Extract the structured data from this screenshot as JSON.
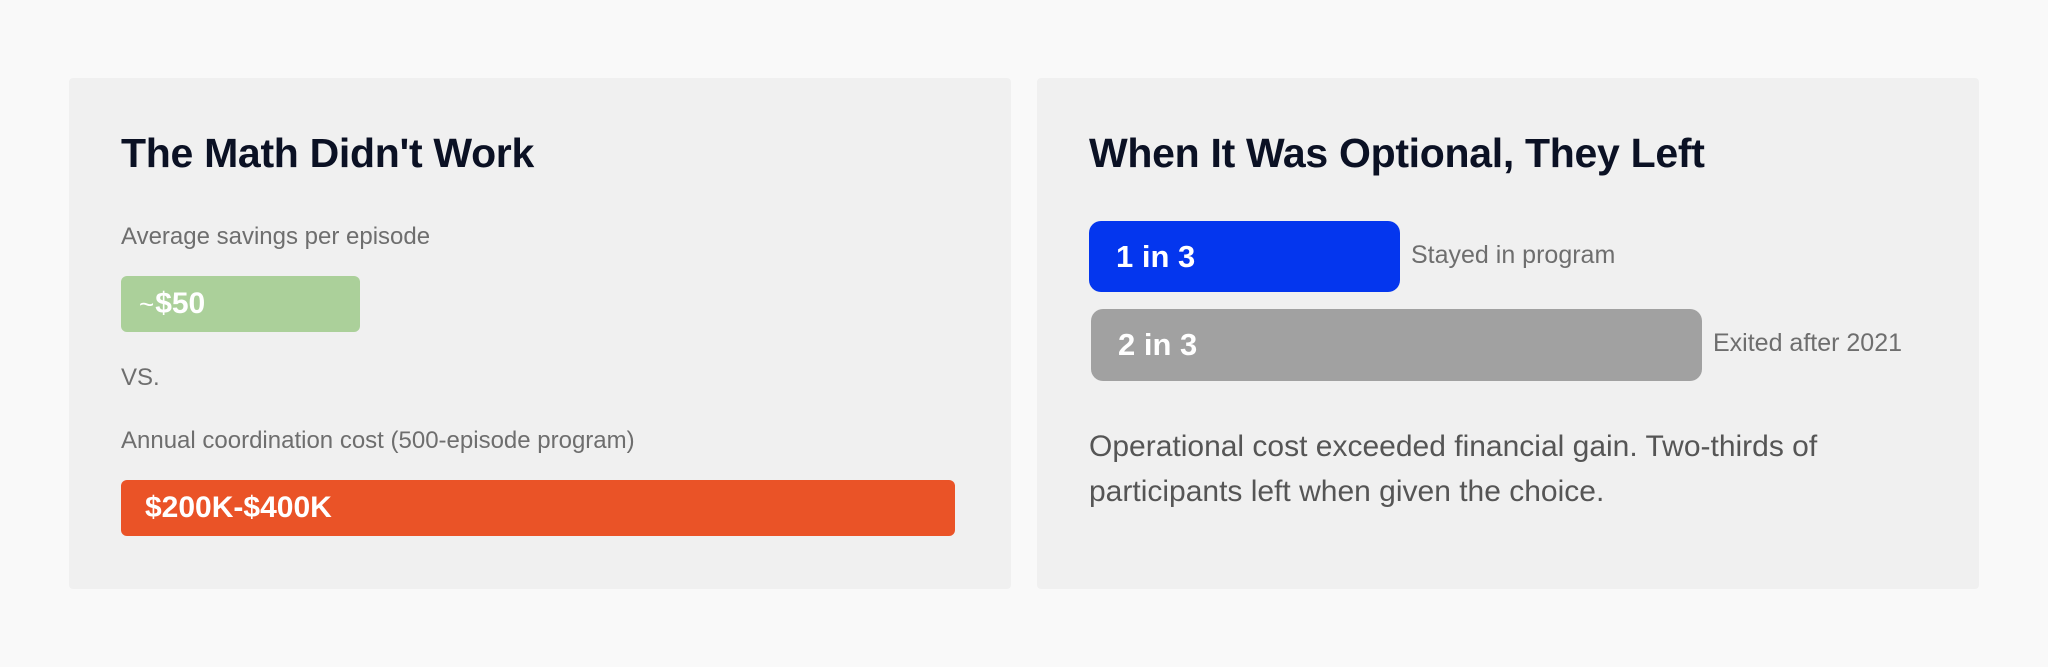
{
  "colors": {
    "page_background": "#f9f9f9",
    "card_background": "#f0f0f0",
    "title_text": "#0b1124",
    "muted_text": "#6e6e6e",
    "savings_green": "#abd09a",
    "cost_orange": "#ea5327",
    "stayed_blue": "#0436ee",
    "exited_gray": "#a1a1a1"
  },
  "math_card": {
    "title": "The Math Didn't Work",
    "savings_label": "Average savings per episode",
    "savings_prefix": "~",
    "savings_value": "$50",
    "versus": "VS.",
    "cost_label": "Annual coordination cost (500-episode program)",
    "cost_value": "$200K-$400K"
  },
  "optional_card": {
    "title": "When It Was Optional, They Left",
    "stayed": {
      "value": "1 in 3",
      "caption": "Stayed in program",
      "share": 0.333
    },
    "exited": {
      "value": "2 in 3",
      "caption": "Exited after 2021",
      "share": 0.667
    },
    "summary": "Operational cost exceeded financial gain. Two-thirds of participants left when given the choice."
  }
}
